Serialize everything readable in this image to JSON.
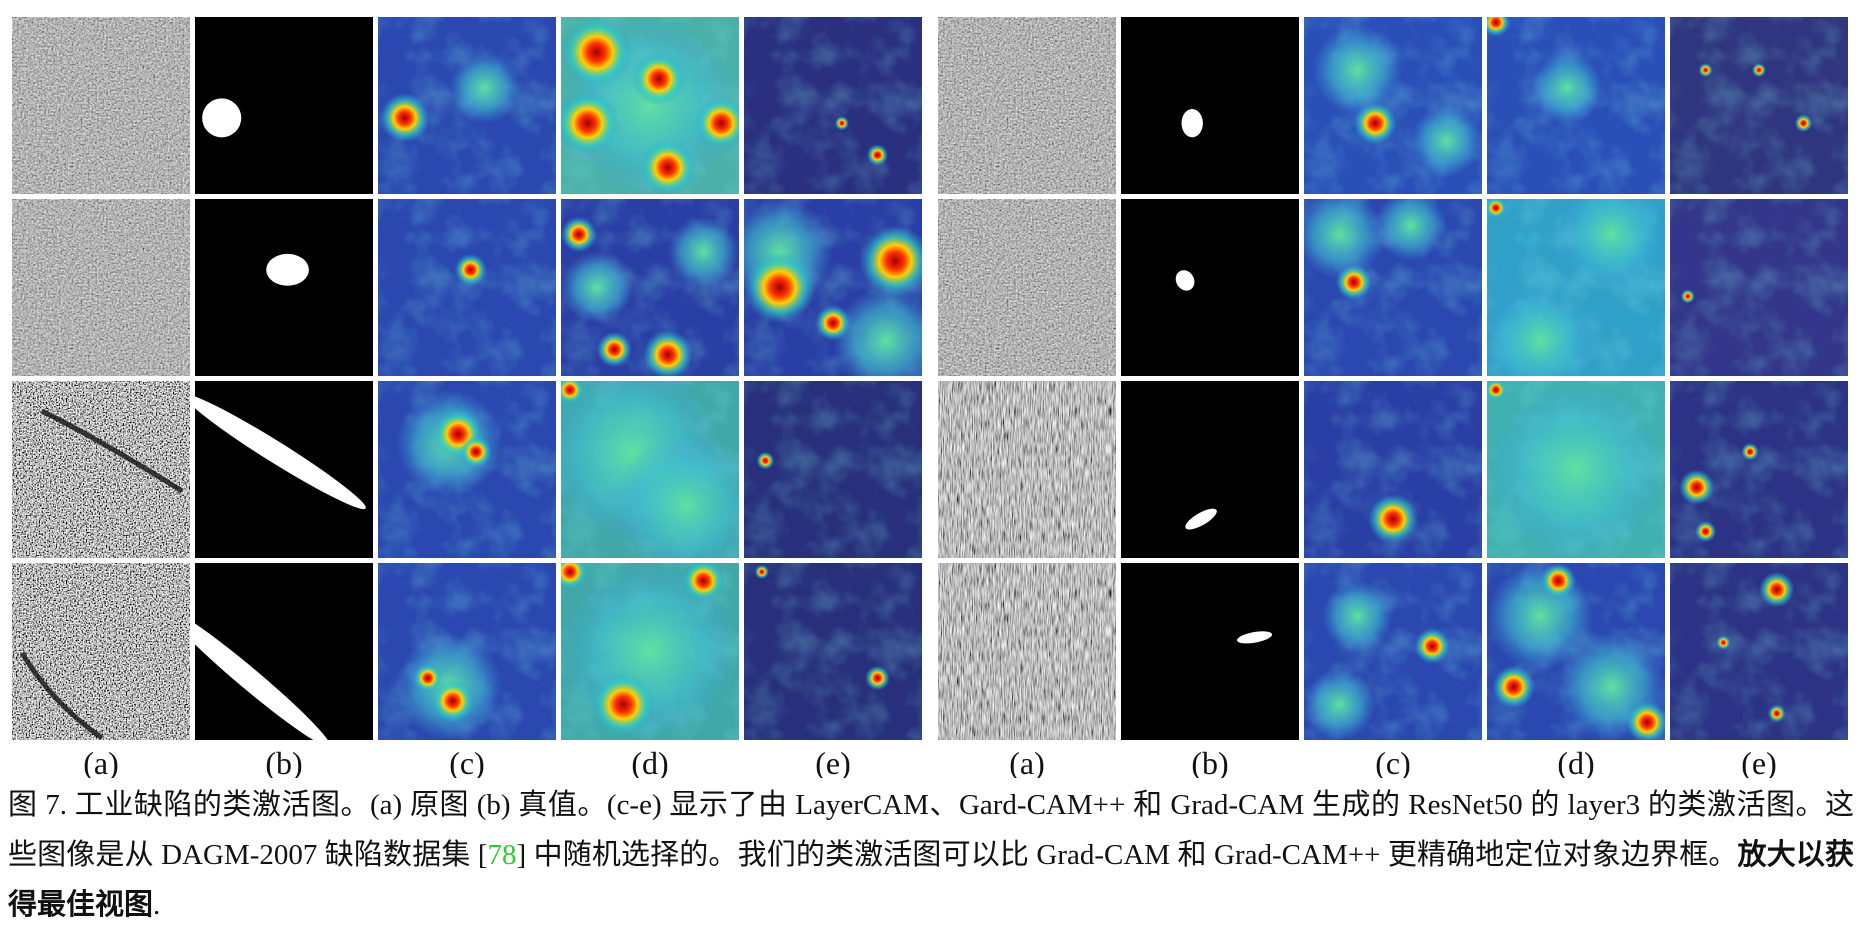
{
  "figure": {
    "column_labels": [
      "(a)",
      "(b)",
      "(c)",
      "(d)",
      "(e)",
      "(a)",
      "(b)",
      "(c)",
      "(d)",
      "(e)"
    ],
    "caption": {
      "prefix": "图 7. 工业缺陷的类激活图。(a) 原图 (b) 真值。(c-e) 显示了由 LayerCAM、Gard-CAM++ 和 Grad-CAM 生成的 ResNet50 的 layer3 的类激活图。这些图像是从 DAGM-2007 缺陷数据集 [",
      "citation": "78",
      "middle": "] 中随机选择的。我们的类激活图可以比 Grad-CAM 和 Grad-CAM++ 更精确地定位对象边界框。",
      "emphasis": "放大以获得最佳视图",
      "suffix": "."
    }
  }
}
